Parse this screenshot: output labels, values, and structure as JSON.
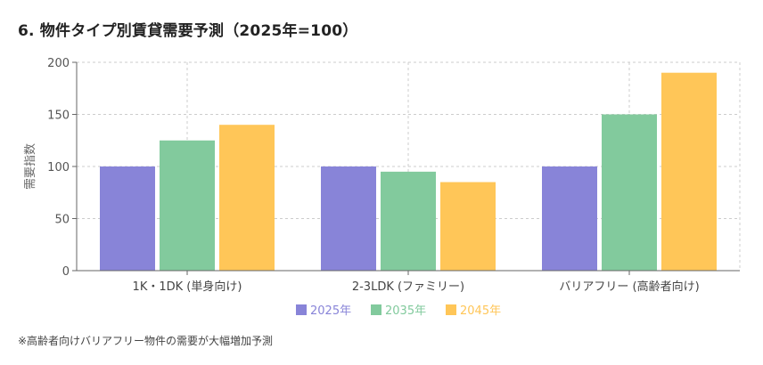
{
  "title": "6. 物件タイプ別賃貸需要予測（2025年=100）",
  "note": "※高齢者向けバリアフリー物件の需要が大幅増加予測",
  "chart_data": {
    "type": "bar",
    "title": "6. 物件タイプ別賃貸需要予測（2025年=100）",
    "xlabel": "",
    "ylabel": "需要指数",
    "ylim": [
      0,
      200
    ],
    "yticks": [
      0,
      50,
      100,
      150,
      200
    ],
    "grid": true,
    "legend_position": "bottom",
    "categories": [
      "1K・1DK (単身向け)",
      "2-3LDK (ファミリー)",
      "バリアフリー (高齢者向け)"
    ],
    "series": [
      {
        "name": "2025年",
        "values": [
          100,
          100,
          100
        ],
        "color": "#8884d8"
      },
      {
        "name": "2035年",
        "values": [
          125,
          95,
          150
        ],
        "color": "#82ca9d"
      },
      {
        "name": "2045年",
        "values": [
          140,
          85,
          190
        ],
        "color": "#ffc658"
      }
    ]
  }
}
